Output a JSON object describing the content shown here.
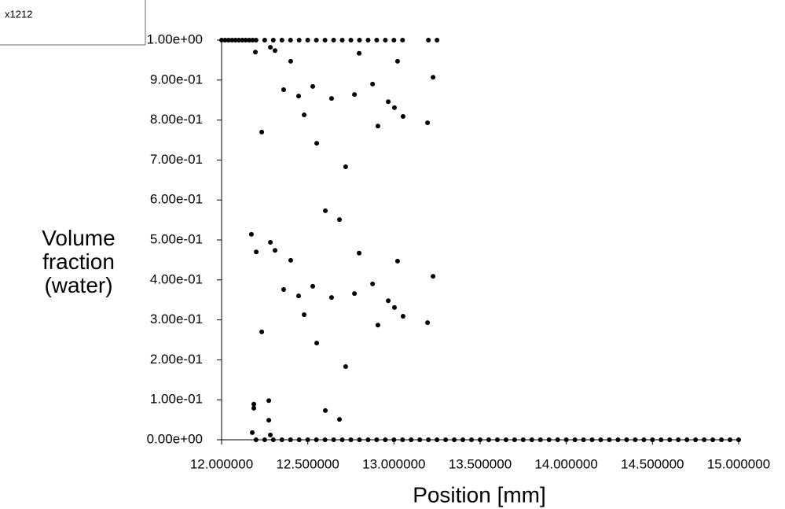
{
  "chart_data": {
    "type": "scatter",
    "xlabel": "Position [mm]",
    "ylabel": "Volume fraction (water)",
    "xlim": [
      12,
      15
    ],
    "ylim": [
      0,
      1
    ],
    "xticks": [
      {
        "value": 12,
        "label": "12.000000"
      },
      {
        "value": 12.5,
        "label": "12.500000"
      },
      {
        "value": 13,
        "label": "13.000000"
      },
      {
        "value": 13.5,
        "label": "13.500000"
      },
      {
        "value": 14,
        "label": "14.000000"
      },
      {
        "value": 14.5,
        "label": "14.500000"
      },
      {
        "value": 15,
        "label": "15.000000"
      }
    ],
    "yticks": [
      {
        "value": 0,
        "label": "0.00e+00"
      },
      {
        "value": 0.1,
        "label": "1.00e-01"
      },
      {
        "value": 0.2,
        "label": "2.00e-01"
      },
      {
        "value": 0.3,
        "label": "3.00e-01"
      },
      {
        "value": 0.4,
        "label": "4.00e-01"
      },
      {
        "value": 0.5,
        "label": "5.00e-01"
      },
      {
        "value": 0.6,
        "label": "6.00e-01"
      },
      {
        "value": 0.7,
        "label": "7.00e-01"
      },
      {
        "value": 0.8,
        "label": "8.00e-01"
      },
      {
        "value": 0.9,
        "label": "9.00e-01"
      },
      {
        "value": 1,
        "label": "1.00e+00"
      }
    ],
    "series": [
      {
        "name": "x1212",
        "color": "#000000",
        "x": [
          12.0,
          12.02,
          12.04,
          12.06,
          12.08,
          12.1,
          12.12,
          12.14,
          12.16,
          12.18,
          12.2,
          12.25,
          12.3,
          12.35,
          12.4,
          12.45,
          12.5,
          12.55,
          12.6,
          12.65,
          12.7,
          12.75,
          12.8,
          12.85,
          12.9,
          12.95,
          13.0,
          13.05,
          13.2,
          13.25,
          12.2,
          12.25,
          12.3,
          12.35,
          12.4,
          12.45,
          12.5,
          12.55,
          12.6,
          12.65,
          12.7,
          12.75,
          12.8,
          12.85,
          12.9,
          12.95,
          13,
          13.05,
          13.1,
          13.15,
          13.2,
          13.25,
          13.3,
          13.35,
          13.4,
          13.45,
          13.5,
          13.55,
          13.6,
          13.65,
          13.7,
          13.75,
          13.8,
          13.85,
          13.9,
          13.95,
          14,
          14.05,
          14.1,
          14.15,
          14.2,
          14.25,
          14.3,
          14.35,
          14.4,
          14.45,
          14.5,
          14.55,
          14.6,
          14.65,
          14.7,
          14.75,
          14.8,
          14.85,
          14.9,
          14.95,
          15,
          12.196,
          12.283,
          12.31,
          12.401,
          12.798,
          13.021,
          13.227,
          12.36,
          12.447,
          12.529,
          12.638,
          12.771,
          12.876,
          12.967,
          13.003,
          13.053,
          12.907,
          13.195,
          12.479,
          12.233,
          12.552,
          12.72,
          12.602,
          12.684,
          12.173,
          12.283,
          12.201,
          12.31,
          12.401,
          12.798,
          13.021,
          13.227,
          12.36,
          12.447,
          12.529,
          12.638,
          12.771,
          12.876,
          12.967,
          13.003,
          13.053,
          12.907,
          13.195,
          12.479,
          12.233,
          12.552,
          12.72,
          12.602,
          12.684,
          12.187,
          12.187,
          12.274,
          12.274,
          12.178,
          12.283
        ],
        "values": [
          1,
          1,
          1,
          1,
          1,
          1,
          1,
          1,
          1,
          1,
          1,
          1,
          1,
          1,
          1,
          1,
          1,
          1,
          1,
          1,
          1,
          1,
          1,
          1,
          1,
          1,
          1,
          1,
          1,
          1,
          0,
          0,
          0,
          0,
          0,
          0,
          0,
          0,
          0,
          0,
          0,
          0,
          0,
          0,
          0,
          0,
          0,
          0,
          0,
          0,
          0,
          0,
          0,
          0,
          0,
          0,
          0,
          0,
          0,
          0,
          0,
          0,
          0,
          0,
          0,
          0,
          0,
          0,
          0,
          0,
          0,
          0,
          0,
          0,
          0,
          0,
          0,
          0,
          0,
          0,
          0,
          0,
          0,
          0,
          0,
          0,
          0,
          0.97,
          0.982,
          0.974,
          0.947,
          0.967,
          0.947,
          0.907,
          0.876,
          0.86,
          0.884,
          0.854,
          0.864,
          0.89,
          0.846,
          0.831,
          0.809,
          0.785,
          0.793,
          0.813,
          0.77,
          0.742,
          0.683,
          0.573,
          0.551,
          0.514,
          0.494,
          0.47,
          0.474,
          0.449,
          0.467,
          0.447,
          0.409,
          0.376,
          0.36,
          0.384,
          0.356,
          0.366,
          0.39,
          0.348,
          0.331,
          0.309,
          0.287,
          0.293,
          0.313,
          0.27,
          0.242,
          0.183,
          0.073,
          0.051,
          0.089,
          0.079,
          0.098,
          0.049,
          0.018,
          0.012
        ]
      }
    ]
  }
}
